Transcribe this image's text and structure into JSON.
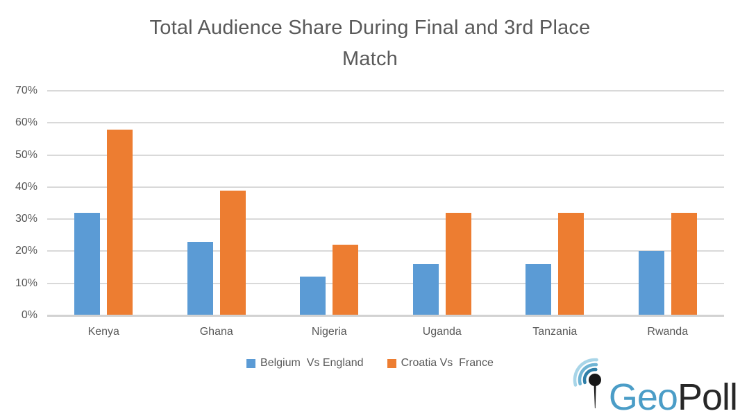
{
  "header": {
    "title_line1": "Total Audience Share During Final and 3rd Place",
    "title_line2": "Match"
  },
  "chart_data": {
    "type": "bar",
    "title": "Total Audience Share During Final and 3rd Place Match",
    "categories": [
      "Kenya",
      "Ghana",
      "Nigeria",
      "Uganda",
      "Tanzania",
      "Rwanda"
    ],
    "series": [
      {
        "key": "belgium-vs-england",
        "name": "Belgium  Vs England",
        "color": "#5B9BD5",
        "values": [
          32,
          23,
          12,
          16,
          16,
          20
        ]
      },
      {
        "key": "croatia-vs-france",
        "name": "Croatia Vs  France",
        "color": "#ED7D31",
        "values": [
          58,
          39,
          22,
          32,
          32,
          32
        ]
      }
    ],
    "xlabel": "",
    "ylabel": "",
    "ylim": [
      0,
      70
    ],
    "yticks": [
      0,
      10,
      20,
      30,
      40,
      50,
      60,
      70
    ],
    "ytick_suffix": "%",
    "grid": true,
    "legend_position": "bottom"
  },
  "logo": {
    "text_blue": "Geo",
    "text_dark": "Poll",
    "icon": "pin-signal-icon"
  },
  "colors": {
    "title_text": "#595959",
    "axis_text": "#595959",
    "gridline": "#D9D9D9",
    "series_blue": "#5B9BD5",
    "series_orange": "#ED7D31",
    "logo_blue": "#4B9DC7",
    "logo_dark": "#272727",
    "background": "#FFFFFF"
  }
}
